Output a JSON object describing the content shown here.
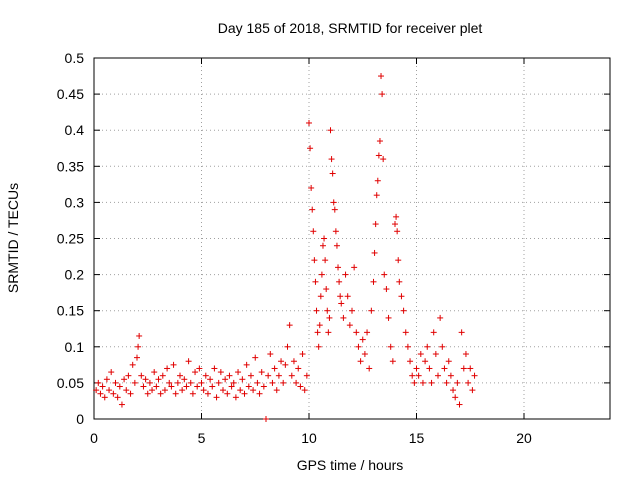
{
  "chart_data": {
    "type": "scatter",
    "title": "Day 185 of 2018, SRMTID for receiver plet",
    "xlabel": "GPS time / hours",
    "ylabel": "SRMTID / TECUs",
    "xlim": [
      0,
      24
    ],
    "ylim": [
      0,
      0.5
    ],
    "xticks": [
      "0",
      "5",
      "10",
      "15",
      "20"
    ],
    "yticks": [
      "0",
      "0.05",
      "0.1",
      "0.15",
      "0.2",
      "0.25",
      "0.3",
      "0.35",
      "0.4",
      "0.45",
      "0.5"
    ],
    "marker_color": "#e00000",
    "grid": true,
    "series": [
      {
        "name": "SRMTID",
        "points": [
          [
            0.1,
            0.04
          ],
          [
            0.2,
            0.05
          ],
          [
            0.3,
            0.035
          ],
          [
            0.4,
            0.045
          ],
          [
            0.5,
            0.03
          ],
          [
            0.6,
            0.055
          ],
          [
            0.7,
            0.04
          ],
          [
            0.8,
            0.065
          ],
          [
            0.9,
            0.035
          ],
          [
            1.0,
            0.05
          ],
          [
            1.1,
            0.03
          ],
          [
            1.2,
            0.045
          ],
          [
            1.3,
            0.02
          ],
          [
            1.4,
            0.055
          ],
          [
            1.5,
            0.04
          ],
          [
            1.6,
            0.06
          ],
          [
            1.7,
            0.035
          ],
          [
            1.8,
            0.075
          ],
          [
            1.9,
            0.05
          ],
          [
            2.0,
            0.085
          ],
          [
            2.05,
            0.1
          ],
          [
            2.1,
            0.115
          ],
          [
            2.2,
            0.06
          ],
          [
            2.3,
            0.045
          ],
          [
            2.4,
            0.055
          ],
          [
            2.5,
            0.035
          ],
          [
            2.6,
            0.05
          ],
          [
            2.7,
            0.04
          ],
          [
            2.8,
            0.065
          ],
          [
            2.9,
            0.045
          ],
          [
            3.0,
            0.055
          ],
          [
            3.1,
            0.035
          ],
          [
            3.2,
            0.06
          ],
          [
            3.3,
            0.04
          ],
          [
            3.4,
            0.07
          ],
          [
            3.5,
            0.05
          ],
          [
            3.6,
            0.045
          ],
          [
            3.7,
            0.075
          ],
          [
            3.8,
            0.035
          ],
          [
            3.9,
            0.05
          ],
          [
            4.0,
            0.06
          ],
          [
            4.1,
            0.04
          ],
          [
            4.2,
            0.055
          ],
          [
            4.3,
            0.045
          ],
          [
            4.4,
            0.08
          ],
          [
            4.5,
            0.05
          ],
          [
            4.6,
            0.035
          ],
          [
            4.7,
            0.065
          ],
          [
            4.8,
            0.045
          ],
          [
            4.9,
            0.07
          ],
          [
            5.0,
            0.05
          ],
          [
            5.1,
            0.04
          ],
          [
            5.2,
            0.06
          ],
          [
            5.3,
            0.035
          ],
          [
            5.4,
            0.055
          ],
          [
            5.5,
            0.045
          ],
          [
            5.6,
            0.07
          ],
          [
            5.7,
            0.03
          ],
          [
            5.8,
            0.05
          ],
          [
            5.9,
            0.065
          ],
          [
            6.0,
            0.04
          ],
          [
            6.1,
            0.055
          ],
          [
            6.2,
            0.035
          ],
          [
            6.3,
            0.06
          ],
          [
            6.4,
            0.045
          ],
          [
            6.5,
            0.05
          ],
          [
            6.6,
            0.03
          ],
          [
            6.7,
            0.065
          ],
          [
            6.8,
            0.04
          ],
          [
            6.9,
            0.055
          ],
          [
            7.0,
            0.035
          ],
          [
            7.1,
            0.075
          ],
          [
            7.2,
            0.045
          ],
          [
            7.3,
            0.06
          ],
          [
            7.4,
            0.04
          ],
          [
            7.5,
            0.085
          ],
          [
            7.6,
            0.05
          ],
          [
            7.7,
            0.035
          ],
          [
            7.8,
            0.065
          ],
          [
            7.9,
            0.045
          ],
          [
            8.0,
            0.0
          ],
          [
            8.1,
            0.06
          ],
          [
            8.2,
            0.09
          ],
          [
            8.3,
            0.05
          ],
          [
            8.4,
            0.07
          ],
          [
            8.5,
            0.04
          ],
          [
            8.6,
            0.06
          ],
          [
            8.7,
            0.08
          ],
          [
            8.8,
            0.05
          ],
          [
            8.9,
            0.075
          ],
          [
            9.0,
            0.1
          ],
          [
            9.1,
            0.13
          ],
          [
            9.2,
            0.06
          ],
          [
            9.3,
            0.08
          ],
          [
            9.4,
            0.05
          ],
          [
            9.5,
            0.07
          ],
          [
            9.6,
            0.045
          ],
          [
            9.7,
            0.09
          ],
          [
            9.8,
            0.04
          ],
          [
            9.9,
            0.06
          ],
          [
            10.0,
            0.41
          ],
          [
            10.05,
            0.375
          ],
          [
            10.1,
            0.32
          ],
          [
            10.15,
            0.29
          ],
          [
            10.2,
            0.26
          ],
          [
            10.25,
            0.22
          ],
          [
            10.3,
            0.19
          ],
          [
            10.35,
            0.15
          ],
          [
            10.4,
            0.12
          ],
          [
            10.45,
            0.1
          ],
          [
            10.5,
            0.13
          ],
          [
            10.55,
            0.17
          ],
          [
            10.6,
            0.2
          ],
          [
            10.65,
            0.24
          ],
          [
            10.7,
            0.25
          ],
          [
            10.75,
            0.22
          ],
          [
            10.8,
            0.18
          ],
          [
            10.85,
            0.15
          ],
          [
            10.9,
            0.12
          ],
          [
            10.95,
            0.14
          ],
          [
            11.0,
            0.4
          ],
          [
            11.05,
            0.36
          ],
          [
            11.1,
            0.34
          ],
          [
            11.15,
            0.3
          ],
          [
            11.2,
            0.29
          ],
          [
            11.25,
            0.26
          ],
          [
            11.3,
            0.24
          ],
          [
            11.35,
            0.21
          ],
          [
            11.4,
            0.19
          ],
          [
            11.45,
            0.17
          ],
          [
            11.5,
            0.16
          ],
          [
            11.6,
            0.14
          ],
          [
            11.7,
            0.2
          ],
          [
            11.8,
            0.17
          ],
          [
            11.9,
            0.13
          ],
          [
            12.0,
            0.15
          ],
          [
            12.1,
            0.21
          ],
          [
            12.2,
            0.12
          ],
          [
            12.3,
            0.1
          ],
          [
            12.4,
            0.08
          ],
          [
            12.5,
            0.11
          ],
          [
            12.6,
            0.09
          ],
          [
            12.7,
            0.12
          ],
          [
            12.8,
            0.07
          ],
          [
            12.9,
            0.15
          ],
          [
            13.0,
            0.19
          ],
          [
            13.05,
            0.23
          ],
          [
            13.1,
            0.27
          ],
          [
            13.15,
            0.31
          ],
          [
            13.2,
            0.33
          ],
          [
            13.25,
            0.365
          ],
          [
            13.3,
            0.385
          ],
          [
            13.35,
            0.475
          ],
          [
            13.4,
            0.45
          ],
          [
            13.45,
            0.36
          ],
          [
            13.5,
            0.2
          ],
          [
            13.6,
            0.18
          ],
          [
            13.7,
            0.14
          ],
          [
            13.8,
            0.1
          ],
          [
            13.9,
            0.08
          ],
          [
            14.0,
            0.27
          ],
          [
            14.05,
            0.28
          ],
          [
            14.1,
            0.26
          ],
          [
            14.15,
            0.22
          ],
          [
            14.2,
            0.19
          ],
          [
            14.3,
            0.17
          ],
          [
            14.4,
            0.15
          ],
          [
            14.5,
            0.12
          ],
          [
            14.6,
            0.1
          ],
          [
            14.7,
            0.08
          ],
          [
            14.8,
            0.06
          ],
          [
            14.9,
            0.05
          ],
          [
            15.0,
            0.07
          ],
          [
            15.1,
            0.06
          ],
          [
            15.2,
            0.09
          ],
          [
            15.3,
            0.05
          ],
          [
            15.4,
            0.08
          ],
          [
            15.5,
            0.1
          ],
          [
            15.6,
            0.07
          ],
          [
            15.7,
            0.05
          ],
          [
            15.8,
            0.12
          ],
          [
            15.9,
            0.09
          ],
          [
            16.0,
            0.06
          ],
          [
            16.1,
            0.14
          ],
          [
            16.2,
            0.1
          ],
          [
            16.3,
            0.07
          ],
          [
            16.4,
            0.05
          ],
          [
            16.5,
            0.08
          ],
          [
            16.6,
            0.06
          ],
          [
            16.7,
            0.04
          ],
          [
            16.8,
            0.03
          ],
          [
            16.9,
            0.05
          ],
          [
            17.0,
            0.02
          ],
          [
            17.1,
            0.12
          ],
          [
            17.2,
            0.07
          ],
          [
            17.3,
            0.09
          ],
          [
            17.4,
            0.05
          ],
          [
            17.5,
            0.07
          ],
          [
            17.6,
            0.04
          ],
          [
            17.7,
            0.06
          ]
        ]
      }
    ]
  }
}
